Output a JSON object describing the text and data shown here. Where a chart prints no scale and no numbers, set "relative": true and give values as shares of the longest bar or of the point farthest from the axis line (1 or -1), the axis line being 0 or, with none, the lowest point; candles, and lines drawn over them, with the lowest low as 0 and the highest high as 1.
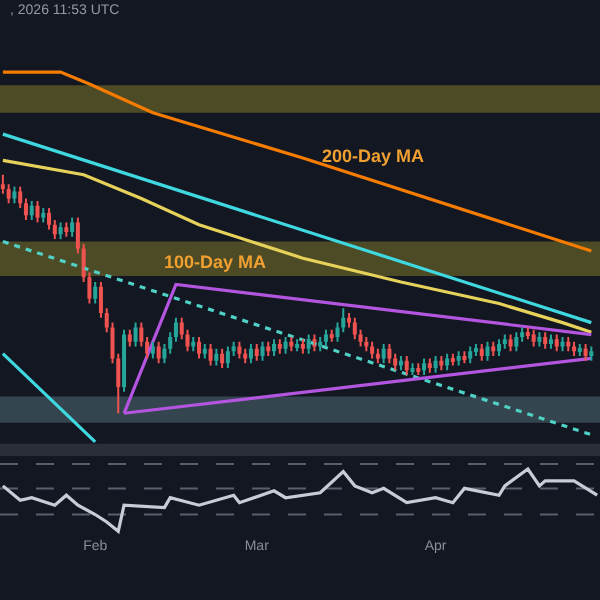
{
  "chart_data": [
    {
      "type": "candlestick",
      "title": ", 2026 11:53 UTC",
      "relative": true,
      "tick_labels": false,
      "xlim": [
        "2026-01-15T12:00",
        "2026-04-29T12:00"
      ],
      "x": [
        "2026-01-16",
        "2026-01-17",
        "2026-01-18",
        "2026-01-19",
        "2026-01-20",
        "2026-01-21",
        "2026-01-22",
        "2026-01-23",
        "2026-01-24",
        "2026-01-25",
        "2026-01-26",
        "2026-01-27",
        "2026-01-28",
        "2026-01-29",
        "2026-01-30",
        "2026-01-31",
        "2026-02-01",
        "2026-02-02",
        "2026-02-03",
        "2026-02-04",
        "2026-02-05",
        "2026-02-06",
        "2026-02-07",
        "2026-02-08",
        "2026-02-09",
        "2026-02-10",
        "2026-02-11",
        "2026-02-12",
        "2026-02-13",
        "2026-02-14",
        "2026-02-15",
        "2026-02-16",
        "2026-02-17",
        "2026-02-18",
        "2026-02-19",
        "2026-02-20",
        "2026-02-21",
        "2026-02-22",
        "2026-02-23",
        "2026-02-24",
        "2026-02-25",
        "2026-02-26",
        "2026-02-27",
        "2026-02-28",
        "2026-03-01",
        "2026-03-02",
        "2026-03-03",
        "2026-03-04",
        "2026-03-05",
        "2026-03-06",
        "2026-03-07",
        "2026-03-08",
        "2026-03-09",
        "2026-03-10",
        "2026-03-11",
        "2026-03-12",
        "2026-03-13",
        "2026-03-14",
        "2026-03-15",
        "2026-03-16",
        "2026-03-17",
        "2026-03-18",
        "2026-03-19",
        "2026-03-20",
        "2026-03-21",
        "2026-03-22",
        "2026-03-23",
        "2026-03-24",
        "2026-03-25",
        "2026-03-26",
        "2026-03-27",
        "2026-03-28",
        "2026-03-29",
        "2026-03-30",
        "2026-03-31",
        "2026-04-01",
        "2026-04-02",
        "2026-04-03",
        "2026-04-04",
        "2026-04-05",
        "2026-04-06",
        "2026-04-07",
        "2026-04-08",
        "2026-04-09",
        "2026-04-10",
        "2026-04-11",
        "2026-04-12",
        "2026-04-13",
        "2026-04-14",
        "2026-04-15",
        "2026-04-16",
        "2026-04-17",
        "2026-04-18",
        "2026-04-19",
        "2026-04-20",
        "2026-04-21",
        "2026-04-22",
        "2026-04-23",
        "2026-04-24",
        "2026-04-25",
        "2026-04-26",
        "2026-04-27",
        "2026-04-28"
      ],
      "ohlc": [
        [
          0.96,
          1.0,
          0.92,
          0.94
        ],
        [
          0.94,
          0.96,
          0.88,
          0.9
        ],
        [
          0.9,
          0.95,
          0.88,
          0.93
        ],
        [
          0.93,
          0.95,
          0.86,
          0.88
        ],
        [
          0.88,
          0.9,
          0.81,
          0.83
        ],
        [
          0.83,
          0.89,
          0.81,
          0.87
        ],
        [
          0.87,
          0.89,
          0.8,
          0.82
        ],
        [
          0.82,
          0.86,
          0.8,
          0.84
        ],
        [
          0.84,
          0.86,
          0.77,
          0.79
        ],
        [
          0.79,
          0.81,
          0.73,
          0.75
        ],
        [
          0.75,
          0.8,
          0.73,
          0.78
        ],
        [
          0.78,
          0.8,
          0.74,
          0.76
        ],
        [
          0.76,
          0.82,
          0.74,
          0.8
        ],
        [
          0.8,
          0.82,
          0.67,
          0.69
        ],
        [
          0.69,
          0.71,
          0.55,
          0.57
        ],
        [
          0.57,
          0.59,
          0.46,
          0.48
        ],
        [
          0.48,
          0.55,
          0.46,
          0.53
        ],
        [
          0.53,
          0.55,
          0.4,
          0.42
        ],
        [
          0.42,
          0.44,
          0.34,
          0.36
        ],
        [
          0.36,
          0.38,
          0.21,
          0.23
        ],
        [
          0.23,
          0.25,
          0.0,
          0.11
        ],
        [
          0.11,
          0.35,
          0.09,
          0.33
        ],
        [
          0.33,
          0.35,
          0.28,
          0.3
        ],
        [
          0.3,
          0.38,
          0.28,
          0.36
        ],
        [
          0.36,
          0.38,
          0.28,
          0.3
        ],
        [
          0.3,
          0.32,
          0.23,
          0.25
        ],
        [
          0.25,
          0.3,
          0.23,
          0.28
        ],
        [
          0.28,
          0.3,
          0.21,
          0.23
        ],
        [
          0.23,
          0.29,
          0.21,
          0.27
        ],
        [
          0.27,
          0.34,
          0.25,
          0.32
        ],
        [
          0.32,
          0.4,
          0.3,
          0.38
        ],
        [
          0.38,
          0.4,
          0.31,
          0.33
        ],
        [
          0.33,
          0.35,
          0.26,
          0.28
        ],
        [
          0.28,
          0.32,
          0.26,
          0.3
        ],
        [
          0.3,
          0.32,
          0.23,
          0.25
        ],
        [
          0.25,
          0.29,
          0.23,
          0.27
        ],
        [
          0.27,
          0.29,
          0.2,
          0.22
        ],
        [
          0.22,
          0.27,
          0.2,
          0.25
        ],
        [
          0.25,
          0.27,
          0.19,
          0.21
        ],
        [
          0.21,
          0.28,
          0.19,
          0.26
        ],
        [
          0.26,
          0.3,
          0.24,
          0.28
        ],
        [
          0.28,
          0.3,
          0.23,
          0.25
        ],
        [
          0.25,
          0.27,
          0.21,
          0.23
        ],
        [
          0.23,
          0.29,
          0.21,
          0.27
        ],
        [
          0.27,
          0.29,
          0.22,
          0.24
        ],
        [
          0.24,
          0.3,
          0.22,
          0.28
        ],
        [
          0.28,
          0.3,
          0.24,
          0.26
        ],
        [
          0.26,
          0.31,
          0.24,
          0.29
        ],
        [
          0.29,
          0.31,
          0.25,
          0.27
        ],
        [
          0.27,
          0.32,
          0.25,
          0.3
        ],
        [
          0.3,
          0.32,
          0.26,
          0.28
        ],
        [
          0.28,
          0.31,
          0.26,
          0.29
        ],
        [
          0.29,
          0.31,
          0.25,
          0.27
        ],
        [
          0.27,
          0.33,
          0.25,
          0.31
        ],
        [
          0.31,
          0.33,
          0.26,
          0.28
        ],
        [
          0.28,
          0.32,
          0.26,
          0.3
        ],
        [
          0.3,
          0.35,
          0.28,
          0.33
        ],
        [
          0.33,
          0.35,
          0.3,
          0.32
        ],
        [
          0.32,
          0.38,
          0.3,
          0.36
        ],
        [
          0.36,
          0.44,
          0.34,
          0.4
        ],
        [
          0.4,
          0.42,
          0.36,
          0.38
        ],
        [
          0.38,
          0.4,
          0.31,
          0.33
        ],
        [
          0.33,
          0.35,
          0.28,
          0.3
        ],
        [
          0.3,
          0.32,
          0.26,
          0.28
        ],
        [
          0.28,
          0.3,
          0.23,
          0.25
        ],
        [
          0.25,
          0.27,
          0.21,
          0.23
        ],
        [
          0.23,
          0.29,
          0.21,
          0.27
        ],
        [
          0.27,
          0.29,
          0.21,
          0.23
        ],
        [
          0.23,
          0.25,
          0.18,
          0.2
        ],
        [
          0.2,
          0.24,
          0.18,
          0.22
        ],
        [
          0.22,
          0.24,
          0.16,
          0.18
        ],
        [
          0.18,
          0.21,
          0.16,
          0.19
        ],
        [
          0.19,
          0.21,
          0.16,
          0.18
        ],
        [
          0.18,
          0.23,
          0.16,
          0.21
        ],
        [
          0.21,
          0.23,
          0.17,
          0.19
        ],
        [
          0.19,
          0.24,
          0.17,
          0.22
        ],
        [
          0.22,
          0.24,
          0.18,
          0.2
        ],
        [
          0.2,
          0.25,
          0.18,
          0.23
        ],
        [
          0.23,
          0.25,
          0.2,
          0.22
        ],
        [
          0.22,
          0.26,
          0.2,
          0.24
        ],
        [
          0.24,
          0.26,
          0.21,
          0.23
        ],
        [
          0.23,
          0.28,
          0.21,
          0.26
        ],
        [
          0.26,
          0.29,
          0.24,
          0.27
        ],
        [
          0.27,
          0.29,
          0.22,
          0.24
        ],
        [
          0.24,
          0.3,
          0.22,
          0.28
        ],
        [
          0.28,
          0.3,
          0.24,
          0.26
        ],
        [
          0.26,
          0.31,
          0.24,
          0.29
        ],
        [
          0.29,
          0.33,
          0.27,
          0.31
        ],
        [
          0.31,
          0.33,
          0.26,
          0.28
        ],
        [
          0.28,
          0.34,
          0.26,
          0.32
        ],
        [
          0.32,
          0.36,
          0.3,
          0.34
        ],
        [
          0.34,
          0.36,
          0.31,
          0.33
        ],
        [
          0.33,
          0.35,
          0.28,
          0.3
        ],
        [
          0.3,
          0.34,
          0.28,
          0.32
        ],
        [
          0.32,
          0.34,
          0.27,
          0.29
        ],
        [
          0.29,
          0.33,
          0.27,
          0.31
        ],
        [
          0.31,
          0.33,
          0.26,
          0.28
        ],
        [
          0.28,
          0.32,
          0.26,
          0.3
        ],
        [
          0.3,
          0.32,
          0.26,
          0.28
        ],
        [
          0.28,
          0.3,
          0.24,
          0.26
        ],
        [
          0.26,
          0.29,
          0.24,
          0.27
        ],
        [
          0.27,
          0.29,
          0.22,
          0.24
        ],
        [
          0.24,
          0.28,
          0.22,
          0.26
        ]
      ],
      "series": [
        {
          "type": "line",
          "color": "#f57c00",
          "x": [
            "2026-01-16",
            "2026-01-26",
            "2026-01-31",
            "2026-02-11",
            "2026-03-09",
            "2026-04-28"
          ],
          "values": [
            1.43,
            1.43,
            1.38,
            1.26,
            1.07,
            0.68
          ]
        },
        {
          "type": "line",
          "color": "#e6d25a",
          "x": [
            "2026-01-16",
            "2026-01-30",
            "2026-02-09",
            "2026-02-19",
            "2026-03-09",
            "2026-03-26",
            "2026-04-12",
            "2026-04-23",
            "2026-04-28"
          ],
          "values": [
            1.06,
            1.0,
            0.9,
            0.79,
            0.65,
            0.55,
            0.46,
            0.38,
            0.34
          ]
        },
        {
          "type": "line",
          "color": "#3fd8e0",
          "x": [
            "2026-01-16",
            "2026-04-28"
          ],
          "values": [
            1.17,
            0.38
          ]
        },
        {
          "type": "line",
          "color": "#3fd8e0",
          "x": [
            "2026-01-16",
            "2026-02-01"
          ],
          "values": [
            0.25,
            -0.12
          ]
        },
        {
          "type": "line",
          "color": "#4fd1c5",
          "line_style": "dotted",
          "x": [
            "2026-01-16",
            "2026-04-28"
          ],
          "values": [
            0.72,
            -0.09
          ]
        },
        {
          "type": "line",
          "color": "#b455e0",
          "x": [
            "2026-02-06",
            "2026-02-15",
            "2026-04-28"
          ],
          "values": [
            0.0,
            0.54,
            0.33
          ]
        },
        {
          "type": "line",
          "color": "#b455e0",
          "x": [
            "2026-02-06",
            "2026-04-28"
          ],
          "values": [
            0.0,
            0.23
          ]
        }
      ],
      "bands": [
        {
          "axis": "y",
          "from": 1.26,
          "to": 1.375,
          "color": "#4d4b25"
        },
        {
          "axis": "y",
          "from": 0.575,
          "to": 0.72,
          "color": "#4d4b25"
        },
        {
          "axis": "y",
          "from": -0.04,
          "to": 0.07,
          "color": "#34454f"
        }
      ],
      "annotations": [
        "200-Day MA",
        "100-Day MA"
      ]
    },
    {
      "type": "line",
      "relative": true,
      "tick_labels": "x",
      "xlim": [
        "2026-01-15T12:00",
        "2026-04-29T12:00"
      ],
      "xticks": [
        {
          "value": "2026-02-01",
          "label": "Feb"
        },
        {
          "value": "2026-03-01",
          "label": "Mar"
        },
        {
          "value": "2026-04-01",
          "label": "Apr"
        }
      ],
      "series": [
        {
          "color": "#c8ccd6",
          "x": [
            "2026-01-16",
            "2026-01-19",
            "2026-01-21",
            "2026-01-25",
            "2026-01-27",
            "2026-01-29",
            "2026-02-01",
            "2026-02-03",
            "2026-02-05",
            "2026-02-06",
            "2026-02-13",
            "2026-02-14",
            "2026-02-19",
            "2026-02-25",
            "2026-02-26",
            "2026-03-04",
            "2026-03-06",
            "2026-03-12",
            "2026-03-16",
            "2026-03-18",
            "2026-03-21",
            "2026-03-23",
            "2026-03-27",
            "2026-04-01",
            "2026-04-04",
            "2026-04-06",
            "2026-04-12",
            "2026-04-13",
            "2026-04-17",
            "2026-04-19",
            "2026-04-20",
            "2026-04-25",
            "2026-04-29"
          ],
          "values": [
            0.73,
            0.5,
            0.54,
            0.42,
            0.58,
            0.42,
            0.27,
            0.15,
            0.0,
            0.42,
            0.38,
            0.54,
            0.42,
            0.58,
            0.46,
            0.65,
            0.54,
            0.62,
            0.96,
            0.73,
            0.62,
            0.69,
            0.46,
            0.54,
            0.46,
            0.69,
            0.58,
            0.73,
            1.0,
            0.73,
            0.81,
            0.81,
            0.58
          ]
        }
      ],
      "ref_lines": [
        {
          "axis": "y",
          "value": 1.08,
          "color": "#5a5f6b",
          "line_style": "dashed"
        },
        {
          "axis": "y",
          "value": 0.69,
          "color": "#5a5f6b",
          "line_style": "dashed"
        },
        {
          "axis": "y",
          "value": 0.27,
          "color": "#5a5f6b",
          "line_style": "dashed"
        }
      ]
    }
  ]
}
